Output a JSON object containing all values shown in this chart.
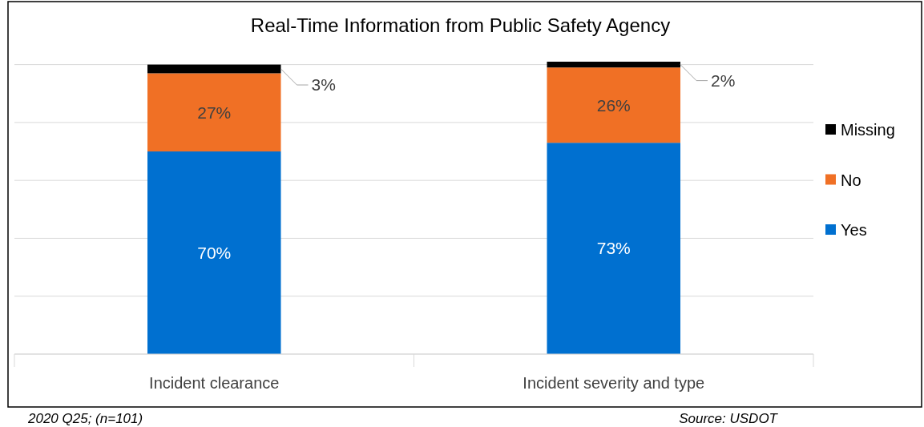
{
  "chart_data": {
    "type": "bar",
    "stacked": true,
    "title": "Real-Time Information from Public Safety Agency",
    "categories": [
      "Incident clearance",
      "Incident severity and type"
    ],
    "series": [
      {
        "name": "Yes",
        "color": "#0070d0",
        "values": [
          70,
          73
        ],
        "value_labels": [
          "70%",
          "73%"
        ]
      },
      {
        "name": "No",
        "color": "#f07025",
        "values": [
          27,
          26
        ],
        "value_labels": [
          "27%",
          "26%"
        ]
      },
      {
        "name": "Missing",
        "color": "#000000",
        "values": [
          3,
          2
        ],
        "value_labels": [
          "3%",
          "2%"
        ]
      }
    ],
    "ylim": [
      0,
      101
    ],
    "yticks": [
      {
        "value": 0,
        "label": null
      },
      {
        "value": 20,
        "label": null
      },
      {
        "value": 40,
        "label": null
      },
      {
        "value": 60,
        "label": null
      },
      {
        "value": 80,
        "label": null
      },
      {
        "value": 100,
        "label": null
      }
    ],
    "grid": "y",
    "legend": "right",
    "annotations": [
      "2020 Q25; (n=101)",
      "Source: USDOT"
    ]
  }
}
